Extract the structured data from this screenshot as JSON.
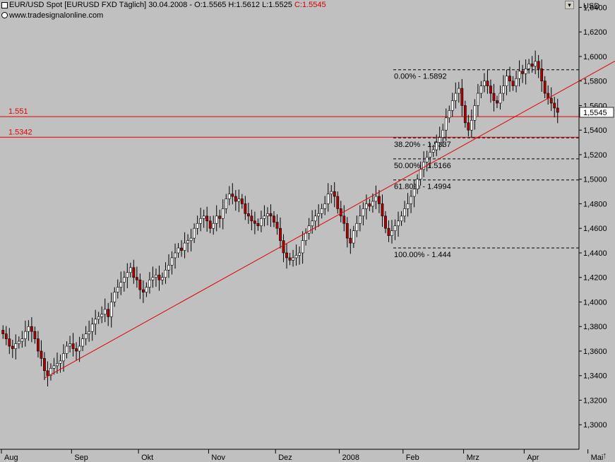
{
  "header": {
    "title": "EUR/USD Spot [EURUSD FXD  Täglich] 30.04.2008 - O:1.5565 H:1.5612 L:1.5525",
    "close": "C:1.5545",
    "source": "www.tradesignalonline.com",
    "currency": "USD"
  },
  "colors": {
    "bull": "#ffffff",
    "bear": "#b00000",
    "line": "#e00000",
    "bg": "#c0c0c0"
  },
  "chart_data": {
    "type": "candlestick",
    "title": "EUR/USD Spot [EURUSD FXD  Täglich]",
    "ylabel": "USD",
    "ylim": [
      1.28,
      1.646
    ],
    "y_ticks": [
      "1,3000",
      "1,3200",
      "1,3400",
      "1,3600",
      "1,3800",
      "1,4000",
      "1,4200",
      "1,4400",
      "1,4600",
      "1,4800",
      "1,5000",
      "1,5200",
      "1,5400",
      "1,5600",
      "1,5800",
      "1,6000",
      "1,6200",
      "1,6400"
    ],
    "x_labels": [
      "Aug",
      "Sep",
      "Okt",
      "Nov",
      "Dez",
      "2008",
      "Feb",
      "Mrz",
      "Apr",
      "Mai"
    ],
    "last_price": "1,5545",
    "horizontal_lines": [
      {
        "label": "1.551",
        "value": 1.551
      },
      {
        "label": "1.5342",
        "value": 1.5342
      }
    ],
    "fibonacci": [
      {
        "label": "0.00% - 1.5892",
        "value": 1.5892
      },
      {
        "label": "38.20% - 1.5337",
        "value": 1.5337
      },
      {
        "label": "50.00% - 1.5166",
        "value": 1.5166
      },
      {
        "label": "61.80% - 1.4994",
        "value": 1.4994
      },
      {
        "label": "100.00% - 1.444",
        "value": 1.444
      }
    ],
    "trendline": {
      "from": {
        "bar": 13,
        "price": 1.338
      },
      "to": {
        "bar": 196,
        "price": 1.602
      }
    },
    "closes": [
      1.374,
      1.37,
      1.364,
      1.362,
      1.366,
      1.368,
      1.37,
      1.376,
      1.38,
      1.376,
      1.37,
      1.36,
      1.354,
      1.344,
      1.34,
      1.346,
      1.348,
      1.35,
      1.352,
      1.358,
      1.364,
      1.366,
      1.362,
      1.36,
      1.364,
      1.37,
      1.374,
      1.376,
      1.382,
      1.386,
      1.388,
      1.39,
      1.394,
      1.388,
      1.4,
      1.408,
      1.412,
      1.416,
      1.42,
      1.424,
      1.428,
      1.42,
      1.418,
      1.41,
      1.408,
      1.412,
      1.418,
      1.42,
      1.422,
      1.418,
      1.42,
      1.426,
      1.43,
      1.436,
      1.44,
      1.444,
      1.442,
      1.448,
      1.45,
      1.452,
      1.46,
      1.464,
      1.468,
      1.47,
      1.466,
      1.46,
      1.464,
      1.47,
      1.468,
      1.476,
      1.484,
      1.488,
      1.486,
      1.482,
      1.484,
      1.48,
      1.472,
      1.47,
      1.466,
      1.464,
      1.462,
      1.468,
      1.47,
      1.472,
      1.47,
      1.465,
      1.46,
      1.45,
      1.44,
      1.436,
      1.434,
      1.436,
      1.438,
      1.44,
      1.45,
      1.456,
      1.462,
      1.466,
      1.47,
      1.472,
      1.476,
      1.48,
      1.488,
      1.49,
      1.486,
      1.476,
      1.47,
      1.464,
      1.452,
      1.448,
      1.458,
      1.464,
      1.47,
      1.476,
      1.48,
      1.478,
      1.482,
      1.486,
      1.48,
      1.47,
      1.46,
      1.454,
      1.458,
      1.462,
      1.466,
      1.47,
      1.476,
      1.48,
      1.486,
      1.492,
      1.5,
      1.508,
      1.514,
      1.518,
      1.522,
      1.524,
      1.53,
      1.534,
      1.54,
      1.55,
      1.556,
      1.564,
      1.57,
      1.574,
      1.56,
      1.546,
      1.54,
      1.548,
      1.56,
      1.57,
      1.576,
      1.58,
      1.576,
      1.57,
      1.564,
      1.562,
      1.57,
      1.576,
      1.584,
      1.58,
      1.576,
      1.582,
      1.588,
      1.586,
      1.59,
      1.594,
      1.592,
      1.596,
      1.59,
      1.58,
      1.57,
      1.566,
      1.562,
      1.558,
      1.5545
    ]
  }
}
